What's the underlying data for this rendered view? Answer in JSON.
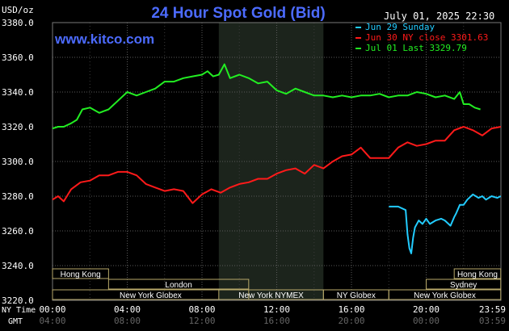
{
  "chart_data": {
    "type": "line",
    "title": "24 Hour Spot Gold (Bid)",
    "source": "www.kitco.com",
    "date_label": "July 01, 2025 22:30",
    "y_unit": "USD/oz",
    "ylim": [
      3220,
      3380
    ],
    "y_ticks": [
      "3380.0",
      "3360.0",
      "3340.0",
      "3320.0",
      "3300.0",
      "3280.0",
      "3260.0",
      "3240.0",
      "3220.0"
    ],
    "x_range_hours": [
      0,
      24
    ],
    "x_ticks_ny": [
      "00:00",
      "04:00",
      "08:00",
      "12:00",
      "16:00",
      "20:00",
      "23:59"
    ],
    "x_ticks_gmt": [
      "04:00",
      "08:00",
      "12:00",
      "16:00",
      "20:00",
      "00:00",
      "03:59"
    ],
    "x_axis_label_ny": "NY Time",
    "x_axis_label_gmt": "GMT",
    "grid": true,
    "shaded_region_hours": [
      8.9,
      14.5
    ],
    "legend_position": "top-right",
    "series": [
      {
        "name": "Jun 29 Sunday",
        "color": "#22ccff",
        "x": [
          18.0,
          18.5,
          18.9,
          19.0,
          19.1,
          19.2,
          19.3,
          19.4,
          19.6,
          19.8,
          20.0,
          20.2,
          20.5,
          20.8,
          21.0,
          21.3,
          21.5,
          21.6,
          21.8,
          22.0,
          22.2,
          22.5,
          22.8,
          23.0,
          23.2,
          23.5,
          23.8,
          23.99
        ],
        "values": [
          3274,
          3274,
          3272,
          3258,
          3250,
          3247,
          3256,
          3262,
          3266,
          3264,
          3267,
          3264,
          3266,
          3267,
          3266,
          3263,
          3268,
          3270,
          3275,
          3275,
          3278,
          3281,
          3279,
          3280,
          3278,
          3280,
          3279,
          3280
        ]
      },
      {
        "name": "Jun 30 NY close 3301.63",
        "color": "#ff1a1a",
        "x": [
          0.0,
          0.3,
          0.6,
          1.0,
          1.5,
          2.0,
          2.5,
          3.0,
          3.5,
          4.0,
          4.5,
          5.0,
          5.5,
          6.0,
          6.5,
          7.0,
          7.5,
          8.0,
          8.5,
          9.0,
          9.5,
          10.0,
          10.5,
          11.0,
          11.5,
          12.0,
          12.5,
          13.0,
          13.5,
          14.0,
          14.5,
          15.0,
          15.5,
          16.0,
          16.5,
          17.0,
          17.5,
          18.0,
          18.5,
          19.0,
          19.5,
          20.0,
          20.5,
          21.0,
          21.5,
          22.0,
          22.5,
          23.0,
          23.5,
          23.99
        ],
        "values": [
          3278,
          3280,
          3277,
          3284,
          3288,
          3289,
          3292,
          3292,
          3294,
          3294,
          3292,
          3287,
          3285,
          3283,
          3284,
          3283,
          3276,
          3281,
          3284,
          3282,
          3285,
          3287,
          3288,
          3290,
          3290,
          3293,
          3295,
          3296,
          3293,
          3298,
          3296,
          3300,
          3303,
          3304,
          3308,
          3302,
          3302,
          3302,
          3308,
          3311,
          3309,
          3310,
          3312,
          3312,
          3318,
          3320,
          3318,
          3315,
          3319,
          3320
        ]
      },
      {
        "name": "Jul 01 Last 3329.79",
        "color": "#22ee22",
        "x": [
          0.0,
          0.3,
          0.6,
          1.0,
          1.3,
          1.6,
          2.0,
          2.5,
          3.0,
          3.5,
          4.0,
          4.5,
          5.0,
          5.5,
          6.0,
          6.5,
          7.0,
          7.5,
          8.0,
          8.3,
          8.6,
          8.9,
          9.2,
          9.5,
          10.0,
          10.5,
          11.0,
          11.5,
          12.0,
          12.5,
          13.0,
          13.5,
          14.0,
          14.5,
          15.0,
          15.5,
          16.0,
          16.5,
          17.0,
          17.5,
          18.0,
          18.5,
          19.0,
          19.5,
          20.0,
          20.5,
          21.0,
          21.5,
          21.8,
          22.0,
          22.3,
          22.6,
          22.9
        ],
        "values": [
          3319,
          3320,
          3320,
          3322,
          3324,
          3330,
          3331,
          3328,
          3330,
          3335,
          3340,
          3338,
          3340,
          3342,
          3346,
          3346,
          3348,
          3349,
          3350,
          3352,
          3349,
          3350,
          3356,
          3348,
          3350,
          3348,
          3345,
          3346,
          3341,
          3339,
          3342,
          3340,
          3338,
          3338,
          3337,
          3338,
          3337,
          3338,
          3338,
          3339,
          3337,
          3338,
          3338,
          3340,
          3339,
          3337,
          3338,
          3336,
          3340,
          3333,
          3333,
          3331,
          3330
        ]
      }
    ],
    "sessions": [
      {
        "label": "Hong Kong",
        "start": 0.0,
        "end": 3.0,
        "row": 0
      },
      {
        "label": "London",
        "start": 3.0,
        "end": 10.5,
        "row": 1
      },
      {
        "label": "New York Globex",
        "start": 0.0,
        "end": 10.5,
        "row": 2
      },
      {
        "label": "New York NYMEX",
        "start": 8.9,
        "end": 14.5,
        "row": 2
      },
      {
        "label": "NY Globex",
        "start": 14.5,
        "end": 18.0,
        "row": 2
      },
      {
        "label": "Hong Kong",
        "start": 21.5,
        "end": 23.99,
        "row": 0
      },
      {
        "label": "Sydney",
        "start": 20.0,
        "end": 23.99,
        "row": 1
      },
      {
        "label": "New York Globex",
        "start": 18.0,
        "end": 23.99,
        "row": 2
      }
    ]
  }
}
